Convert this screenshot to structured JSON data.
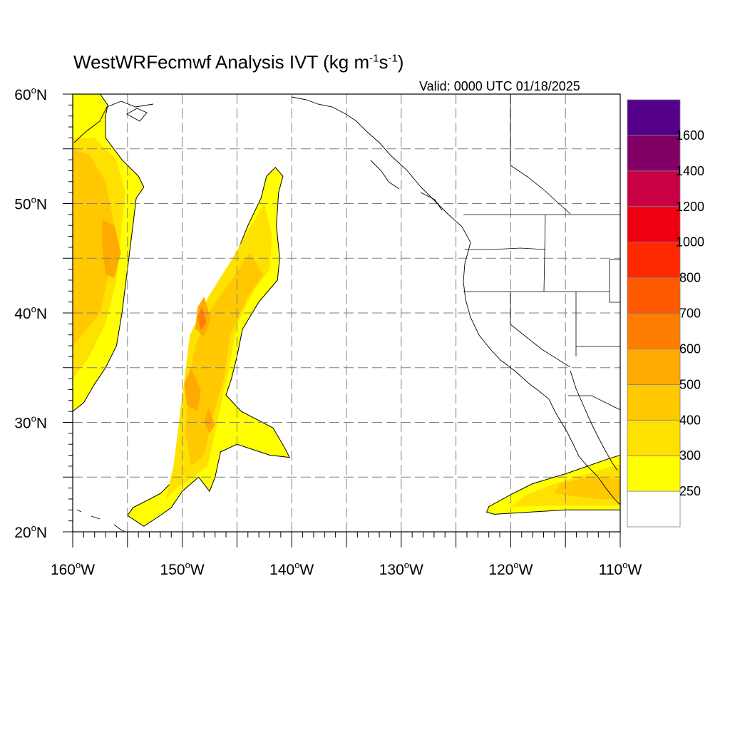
{
  "header": {
    "title_main": "WestWRFecmwf Analysis IVT (kg m",
    "title_exp1": "-1",
    "title_mid": "s",
    "title_exp2": "-1",
    "title_end": ")",
    "valid": "Valid: 0000 UTC 01/18/2025"
  },
  "map": {
    "lon_range": [
      -160,
      -110
    ],
    "lat_range": [
      20,
      60
    ],
    "grid": "dashed every 5 degrees",
    "lon_ticks": [
      {
        "value": -160,
        "num": "160",
        "hemi": "W"
      },
      {
        "value": -150,
        "num": "150",
        "hemi": "W"
      },
      {
        "value": -140,
        "num": "140",
        "hemi": "W"
      },
      {
        "value": -130,
        "num": "130",
        "hemi": "W"
      },
      {
        "value": -120,
        "num": "120",
        "hemi": "W"
      },
      {
        "value": -110,
        "num": "110",
        "hemi": "W"
      }
    ],
    "lat_ticks": [
      {
        "value": 60,
        "num": "60",
        "hemi": "N"
      },
      {
        "value": 50,
        "num": "50",
        "hemi": "N"
      },
      {
        "value": 40,
        "num": "40",
        "hemi": "N"
      },
      {
        "value": 30,
        "num": "30",
        "hemi": "N"
      },
      {
        "value": 20,
        "num": "20",
        "hemi": "N"
      }
    ],
    "degree_symbol": "o"
  },
  "colorbar": {
    "levels": [
      {
        "label": "",
        "color": "#ffffff"
      },
      {
        "label": "250",
        "color": "#ffff00"
      },
      {
        "label": "300",
        "color": "#ffe100"
      },
      {
        "label": "400",
        "color": "#ffc800"
      },
      {
        "label": "500",
        "color": "#ffaa00"
      },
      {
        "label": "600",
        "color": "#ff7d00"
      },
      {
        "label": "700",
        "color": "#ff5a00"
      },
      {
        "label": "800",
        "color": "#ff2800"
      },
      {
        "label": "1000",
        "color": "#ee0010"
      },
      {
        "label": "1200",
        "color": "#c80044"
      },
      {
        "label": "1400",
        "color": "#820066"
      },
      {
        "label": "1600",
        "color": "#550088"
      }
    ]
  },
  "ivt_regions": [
    {
      "name": "west-edge-plume",
      "outline": [
        [
          -160,
          60
        ],
        [
          -157.5,
          60
        ],
        [
          -156.8,
          59
        ],
        [
          -157,
          58
        ],
        [
          -157,
          56
        ],
        [
          -155.5,
          54
        ],
        [
          -154,
          52.5
        ],
        [
          -153.5,
          51.5
        ],
        [
          -154.2,
          50.5
        ],
        [
          -154.5,
          48
        ],
        [
          -155,
          44
        ],
        [
          -155.5,
          40
        ],
        [
          -156,
          37
        ],
        [
          -157,
          35
        ],
        [
          -158,
          33.5
        ],
        [
          -159,
          31.8
        ],
        [
          -160,
          31
        ]
      ],
      "inner": [
        {
          "level": 2,
          "pts": [
            [
              -160,
              56
            ],
            [
              -158,
              56
            ],
            [
              -156,
              54
            ],
            [
              -155.2,
              51
            ],
            [
              -155.6,
              47
            ],
            [
              -156,
              43
            ],
            [
              -157,
              39
            ],
            [
              -158.5,
              36
            ],
            [
              -160,
              34
            ]
          ]
        },
        {
          "level": 3,
          "pts": [
            [
              -160,
              55
            ],
            [
              -158.5,
              54.5
            ],
            [
              -157,
              52
            ],
            [
              -156.2,
              48
            ],
            [
              -156.6,
              44
            ],
            [
              -157.5,
              40
            ],
            [
              -160,
              37
            ]
          ]
        },
        {
          "level": 4,
          "pts": [
            [
              -157.3,
              48.5
            ],
            [
              -156.2,
              48
            ],
            [
              -155.6,
              45.5
            ],
            [
              -156.2,
              43.2
            ],
            [
              -157,
              43.5
            ],
            [
              -157.3,
              46
            ]
          ]
        }
      ]
    },
    {
      "name": "central-plume",
      "outline": [
        [
          -141.5,
          53.3
        ],
        [
          -140.8,
          52.5
        ],
        [
          -141.2,
          51
        ],
        [
          -141.4,
          48
        ],
        [
          -141.1,
          45
        ],
        [
          -141.3,
          43
        ],
        [
          -143,
          41
        ],
        [
          -144.5,
          38.5
        ],
        [
          -145,
          36
        ],
        [
          -145.5,
          34
        ],
        [
          -146,
          32.5
        ],
        [
          -144.6,
          31
        ],
        [
          -141.7,
          29.5
        ],
        [
          -140.6,
          27.6
        ],
        [
          -140.2,
          26.8
        ],
        [
          -142,
          27
        ],
        [
          -145,
          28
        ],
        [
          -146.5,
          27.3
        ],
        [
          -147,
          25
        ],
        [
          -147.5,
          23.7
        ],
        [
          -148.5,
          25
        ],
        [
          -150,
          23.7
        ],
        [
          -151,
          22.2
        ],
        [
          -152,
          21.5
        ],
        [
          -153.5,
          20.5
        ],
        [
          -155,
          21.5
        ],
        [
          -154.5,
          22.2
        ],
        [
          -152,
          23.5
        ],
        [
          -150.5,
          25
        ],
        [
          -149.5,
          26.5
        ],
        [
          -149.7,
          30
        ],
        [
          -149.5,
          34.5
        ],
        [
          -149.2,
          38
        ],
        [
          -148,
          40.5
        ],
        [
          -146.5,
          42.5
        ],
        [
          -145,
          45.5
        ],
        [
          -144,
          48
        ],
        [
          -142.8,
          50.5
        ],
        [
          -142.3,
          52.5
        ]
      ],
      "inner": [
        {
          "level": 2,
          "pts": [
            [
              -142.5,
              50
            ],
            [
              -141.8,
              47
            ],
            [
              -142,
              44
            ],
            [
              -143.5,
              42
            ],
            [
              -145,
              39
            ],
            [
              -145.7,
              35
            ],
            [
              -146.4,
              32
            ],
            [
              -147,
              29
            ],
            [
              -147.7,
              26
            ],
            [
              -149,
              25
            ],
            [
              -150.5,
              24
            ],
            [
              -151.5,
              23
            ],
            [
              -150.8,
              26
            ],
            [
              -150.3,
              30
            ],
            [
              -149.8,
              34
            ],
            [
              -149.3,
              38
            ],
            [
              -147.6,
              41.5
            ],
            [
              -145.7,
              44.5
            ],
            [
              -144,
              47.5
            ]
          ]
        },
        {
          "level": 3,
          "pts": [
            [
              -143.8,
              45.5
            ],
            [
              -142.6,
              43.5
            ],
            [
              -144,
              41.5
            ],
            [
              -145.6,
              38
            ],
            [
              -146.2,
              34
            ],
            [
              -147.2,
              30.5
            ],
            [
              -148,
              27
            ],
            [
              -149.2,
              26
            ],
            [
              -149.7,
              29
            ],
            [
              -149.5,
              33
            ],
            [
              -148.8,
              37
            ],
            [
              -147.3,
              40.5
            ],
            [
              -145.5,
              43
            ]
          ]
        },
        {
          "level": 4,
          "pts": [
            [
              -148,
              41.5
            ],
            [
              -147.4,
              39.5
            ],
            [
              -148,
              37.8
            ],
            [
              -148.8,
              38.6
            ],
            [
              -148.6,
              40.5
            ]
          ]
        },
        {
          "level": 4,
          "pts": [
            [
              -149.2,
              35
            ],
            [
              -148.3,
              33
            ],
            [
              -148.6,
              31
            ],
            [
              -149.6,
              31.6
            ],
            [
              -149.8,
              33.5
            ]
          ]
        },
        {
          "level": 4,
          "pts": [
            [
              -147.6,
              31.3
            ],
            [
              -147,
              29.8
            ],
            [
              -147.5,
              29
            ],
            [
              -148,
              30
            ]
          ]
        },
        {
          "level": 5,
          "pts": [
            [
              -148.2,
              40.6
            ],
            [
              -147.8,
              39.2
            ],
            [
              -148.3,
              38.4
            ],
            [
              -148.6,
              39.6
            ]
          ]
        }
      ]
    },
    {
      "name": "southeast-plume",
      "outline": [
        [
          -122.2,
          21.8
        ],
        [
          -121.5,
          21.6
        ],
        [
          -115,
          22
        ],
        [
          -110,
          22
        ],
        [
          -110,
          27
        ],
        [
          -111,
          26.7
        ],
        [
          -115,
          25.3
        ],
        [
          -118,
          24.4
        ],
        [
          -120,
          23.4
        ],
        [
          -122,
          22.3
        ]
      ],
      "inner": [
        {
          "level": 2,
          "pts": [
            [
              -120,
              22.3
            ],
            [
              -115,
              22.4
            ],
            [
              -110,
              22.4
            ],
            [
              -110,
              26.2
            ],
            [
              -113,
              25.3
            ],
            [
              -116,
              24.4
            ],
            [
              -118.5,
              23.4
            ]
          ]
        },
        {
          "level": 3,
          "pts": [
            [
              -116,
              23.5
            ],
            [
              -112,
              23
            ],
            [
              -110,
              23
            ],
            [
              -110,
              24.8
            ],
            [
              -113,
              25
            ],
            [
              -115.5,
              24.4
            ]
          ]
        }
      ]
    }
  ]
}
